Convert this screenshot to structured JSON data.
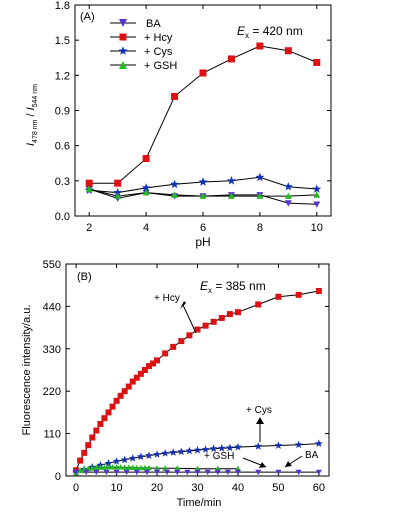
{
  "figure": {
    "colors": {
      "BA": "#5533cc",
      "Hcy": "#dd1111",
      "Cys": "#1133bb",
      "GSH": "#22bb22",
      "axis": "#000000"
    }
  },
  "chart_data": [
    {
      "type": "line",
      "panel_label": "(A)",
      "xlabel": "pH",
      "ylabel_parts": {
        "I1": "I",
        "sub1": "478 nm",
        "slash": " / ",
        "I2": "I",
        "sub2": "544 nm"
      },
      "xlim": [
        1.5,
        10.5
      ],
      "ylim": [
        0,
        1.8
      ],
      "x_ticks": [
        2,
        4,
        6,
        8,
        10
      ],
      "y_ticks": [
        0.0,
        0.3,
        0.6,
        0.9,
        1.2,
        1.5,
        1.8
      ],
      "y_tick_labels": [
        "0.0",
        "0.3",
        "0.6",
        "0.9",
        "1.2",
        "1.5",
        "1.8"
      ],
      "annotation": {
        "E": "E",
        "sub": "x",
        "rest": " = 420 nm"
      },
      "legend_position": "top-left",
      "x": [
        2,
        3,
        4,
        5,
        6,
        7,
        8,
        9,
        10
      ],
      "series": [
        {
          "name": "BA",
          "marker": "triangle-down",
          "color": "#5533cc",
          "values": [
            0.23,
            0.15,
            0.2,
            0.17,
            0.17,
            0.18,
            0.18,
            0.11,
            0.1
          ]
        },
        {
          "name": "+ Hcy",
          "marker": "square",
          "color": "#dd1111",
          "values": [
            0.28,
            0.28,
            0.49,
            1.02,
            1.22,
            1.34,
            1.45,
            1.41,
            1.31
          ]
        },
        {
          "name": "+ Cys",
          "marker": "star",
          "color": "#1133bb",
          "values": [
            0.22,
            0.2,
            0.24,
            0.27,
            0.29,
            0.3,
            0.33,
            0.25,
            0.23
          ]
        },
        {
          "name": "+ GSH",
          "marker": "triangle-up",
          "color": "#22bb22",
          "values": [
            0.23,
            0.17,
            0.2,
            0.18,
            0.17,
            0.17,
            0.17,
            0.17,
            0.18
          ]
        }
      ]
    },
    {
      "type": "scatter",
      "panel_label": "(B)",
      "xlabel": "Time/min",
      "ylabel": "Fluorescence intensity/a.u.",
      "xlim": [
        -2.5,
        62.5
      ],
      "ylim": [
        0,
        550
      ],
      "x_ticks": [
        0,
        10,
        20,
        30,
        40,
        50,
        60
      ],
      "y_ticks": [
        0,
        110,
        220,
        330,
        440,
        550
      ],
      "annotation": {
        "E": "E",
        "sub": "x",
        "rest": " = 385 nm"
      },
      "labels": {
        "Hcy": "+ Hcy",
        "Cys": "+ Cys",
        "GSH": "+ GSH",
        "BA": "BA"
      },
      "series": [
        {
          "name": "+ Hcy",
          "marker": "square",
          "color": "#dd1111",
          "x": [
            0,
            1,
            2,
            3,
            4,
            5,
            6,
            7,
            8,
            9,
            10,
            11,
            12,
            13,
            14,
            15,
            16,
            17,
            18,
            19,
            20,
            22,
            24,
            26,
            28,
            30,
            32,
            34,
            36,
            38,
            40,
            45,
            50,
            55,
            60
          ],
          "values": [
            15,
            40,
            60,
            80,
            100,
            118,
            135,
            150,
            165,
            180,
            195,
            208,
            220,
            232,
            245,
            255,
            265,
            275,
            285,
            292,
            300,
            318,
            335,
            350,
            365,
            380,
            390,
            400,
            410,
            420,
            425,
            445,
            465,
            470,
            480
          ]
        },
        {
          "name": "+ Cys",
          "marker": "star",
          "color": "#1133bb",
          "x": [
            0,
            2,
            4,
            6,
            8,
            10,
            12,
            14,
            16,
            18,
            20,
            22,
            24,
            26,
            28,
            30,
            32,
            34,
            36,
            38,
            40,
            45,
            50,
            55,
            60
          ],
          "values": [
            10,
            17,
            23,
            28,
            33,
            38,
            42,
            46,
            50,
            53,
            56,
            59,
            61,
            63,
            65,
            67,
            69,
            71,
            72,
            73,
            75,
            77,
            79,
            81,
            84
          ]
        },
        {
          "name": "+ GSH",
          "marker": "triangle-up",
          "color": "#22bb22",
          "x": [
            0,
            1,
            2,
            3,
            4,
            5,
            6,
            7,
            8,
            9,
            10,
            11,
            12,
            13,
            14,
            15,
            16,
            17,
            18,
            20,
            22,
            25,
            30,
            35,
            40
          ],
          "values": [
            8,
            14,
            17,
            19,
            20,
            21,
            22,
            22,
            23,
            23,
            23,
            23,
            22,
            22,
            22,
            21,
            21,
            21,
            21,
            20,
            20,
            20,
            19,
            19,
            19
          ]
        },
        {
          "name": "BA",
          "marker": "triangle-down",
          "color": "#5533cc",
          "x": [
            0,
            2.5,
            5,
            7.5,
            10,
            12.5,
            15,
            17.5,
            20,
            22.5,
            25,
            27.5,
            30,
            32.5,
            35,
            37.5,
            40,
            45,
            50,
            55,
            60
          ],
          "values": [
            10,
            10,
            10,
            10,
            10,
            10,
            10,
            10,
            10,
            10,
            10,
            10,
            10,
            10,
            10,
            10,
            10,
            10,
            10,
            10,
            10
          ]
        }
      ]
    }
  ]
}
